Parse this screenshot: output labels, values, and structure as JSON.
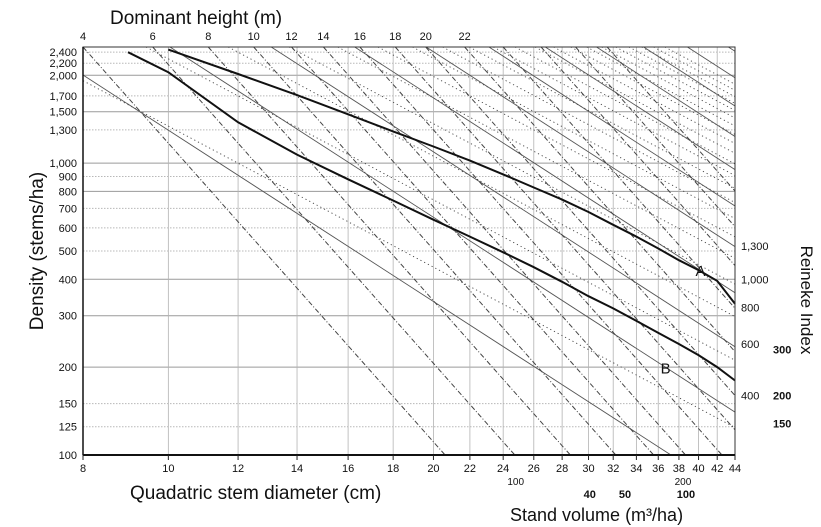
{
  "chart_data": {
    "type": "line",
    "xlabel": "Quadatric stem diameter (cm)",
    "ylabel": "Density (stems/ha)",
    "top_axis_label": "Dominant height (m)",
    "right_axis_label": "Reineke Index",
    "volume_axis_label": "Stand volume (m³/ha)",
    "x_scale": "log",
    "y_scale": "log",
    "xlim": [
      8,
      44
    ],
    "ylim": [
      100,
      2500
    ],
    "grid": true,
    "x_ticks": [
      8,
      10,
      12,
      14,
      16,
      18,
      20,
      22,
      24,
      26,
      28,
      30,
      32,
      34,
      36,
      38,
      40,
      42,
      44
    ],
    "x_tick_labels": [
      "8",
      "10",
      "12",
      "14",
      "16",
      "18",
      "20",
      "22",
      "24",
      "26",
      "28",
      "30",
      "32",
      "34",
      "36",
      "38",
      "40",
      "42",
      "44"
    ],
    "y_ticks": [
      100,
      125,
      150,
      200,
      300,
      400,
      500,
      600,
      700,
      800,
      900,
      1000,
      1300,
      1500,
      1700,
      2000,
      2200,
      2400
    ],
    "y_tick_labels": [
      "100",
      "125",
      "150",
      "200",
      "300",
      "400",
      "500",
      "600",
      "700",
      "800",
      "900",
      "1,000",
      "1,300",
      "1,500",
      "1,700",
      "2,000",
      "2,200",
      "2,400"
    ],
    "dominant_height_ticks": [
      {
        "label": "4",
        "x": 8.0
      },
      {
        "label": "6",
        "x": 9.6
      },
      {
        "label": "8",
        "x": 11.1
      },
      {
        "label": "10",
        "x": 12.5
      },
      {
        "label": "12",
        "x": 13.8
      },
      {
        "label": "14",
        "x": 15.0
      },
      {
        "label": "16",
        "x": 16.5
      },
      {
        "label": "18",
        "x": 18.1
      },
      {
        "label": "20",
        "x": 19.6
      },
      {
        "label": "22",
        "x": 21.7
      }
    ],
    "reineke_labels": [
      {
        "label": "1,300",
        "y": 520
      },
      {
        "label": "1,000",
        "y": 400
      },
      {
        "label": "800",
        "y": 320
      },
      {
        "label": "600",
        "y": 240
      },
      {
        "label": "400",
        "y": 160
      }
    ],
    "volume_labels_edge": [
      {
        "label": "300",
        "y": 230
      },
      {
        "label": "200",
        "y": 160
      },
      {
        "label": "150",
        "y": 128
      }
    ],
    "volume_labels_bottom": [
      {
        "label": "100",
        "x": 24.8,
        "row": "top"
      },
      {
        "label": "200",
        "x": 38.4,
        "row": "top"
      },
      {
        "label": "40",
        "x": 30.1,
        "row": "bold"
      },
      {
        "label": "50",
        "x": 33.0,
        "row": "bold"
      },
      {
        "label": "100",
        "x": 38.7,
        "row": "bold"
      }
    ],
    "series": [
      {
        "name": "A",
        "x": [
          10.0,
          12.0,
          14.0,
          16.0,
          18.0,
          20.0,
          22.0,
          24.0,
          26.0,
          28.0,
          30.0,
          32.0,
          34.0,
          36.0,
          38.0,
          40.0,
          42.0,
          44.0
        ],
        "y": [
          2450,
          2020,
          1710,
          1470,
          1285,
          1140,
          1020,
          915,
          825,
          750,
          680,
          615,
          560,
          510,
          465,
          430,
          395,
          330
        ]
      },
      {
        "name": "B",
        "x": [
          9.0,
          10.0,
          12.0,
          14.0,
          16.0,
          18.0,
          20.0,
          22.0,
          24.0,
          26.0,
          28.0,
          30.0,
          32.0,
          34.0,
          36.0,
          38.0,
          40.0,
          42.0,
          44.0
        ],
        "y": [
          2400,
          2050,
          1380,
          1070,
          880,
          745,
          640,
          560,
          495,
          440,
          392,
          350,
          318,
          288,
          262,
          240,
          220,
          200,
          180
        ]
      }
    ],
    "curve_labels": [
      {
        "text": "A",
        "x": 40.2,
        "y": 410
      },
      {
        "text": "B",
        "x": 36.7,
        "y": 190
      }
    ]
  }
}
